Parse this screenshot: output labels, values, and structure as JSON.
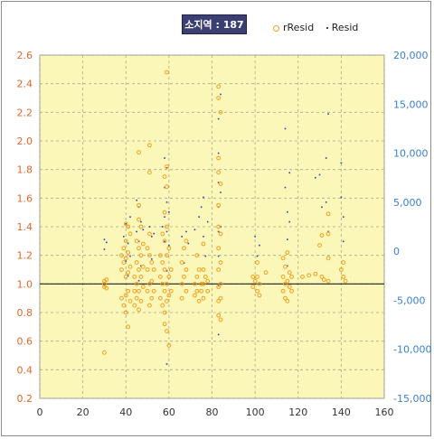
{
  "chart_data": {
    "type": "scatter",
    "title": "소지역 : 187",
    "legend": [
      "rResid",
      "Resid"
    ],
    "legend_position": "top-right",
    "grid": true,
    "xlim": [
      0,
      160
    ],
    "ylim": [
      0.2,
      2.6
    ],
    "y2lim": [
      -15000,
      20000
    ],
    "xticks": [
      "0",
      "20",
      "40",
      "60",
      "80",
      "100",
      "120",
      "140",
      "160"
    ],
    "yticks": [
      "0.2",
      "0.4",
      "0.6",
      "0.8",
      "1.0",
      "1.2",
      "1.4",
      "1.6",
      "1.8",
      "2.0",
      "2.2",
      "2.4",
      "2.6"
    ],
    "y2ticks": [
      "-15,000",
      "-10,000",
      "-5,000",
      "0",
      "5,000",
      "10,000",
      "15,000",
      "20,000"
    ],
    "reference_line": 1.0,
    "colors": {
      "rResid": "#f0a020",
      "Resid": "#2c3db5",
      "plot_bg": "#fbf7b8",
      "left_axis": "#e0682a",
      "right_axis": "#3a7fd0"
    },
    "series": [
      {
        "name": "rResid",
        "axis": "left",
        "points": [
          [
            30,
            1.02
          ],
          [
            30,
            0.98
          ],
          [
            30,
            1.0
          ],
          [
            30,
            0.52
          ],
          [
            31,
            1.03
          ],
          [
            31,
            0.97
          ],
          [
            38,
            1.2
          ],
          [
            38,
            1.1
          ],
          [
            38,
            0.9
          ],
          [
            39,
            1.25
          ],
          [
            39,
            0.85
          ],
          [
            39,
            1.15
          ],
          [
            40,
            1.42
          ],
          [
            40,
            1.3
          ],
          [
            40,
            1.18
          ],
          [
            40,
            1.05
          ],
          [
            40,
            0.92
          ],
          [
            40,
            0.8
          ],
          [
            41,
            1.4
          ],
          [
            41,
            1.22
          ],
          [
            41,
            1.08
          ],
          [
            41,
            0.95
          ],
          [
            41,
            0.7
          ],
          [
            42,
            1.35
          ],
          [
            42,
            1.12
          ],
          [
            42,
            0.88
          ],
          [
            44,
            1.05
          ],
          [
            44,
            0.95
          ],
          [
            44,
            0.85
          ],
          [
            45,
            1.3
          ],
          [
            45,
            1.15
          ],
          [
            45,
            1.0
          ],
          [
            45,
            0.9
          ],
          [
            46,
            1.92
          ],
          [
            46,
            1.55
          ],
          [
            46,
            1.45
          ],
          [
            46,
            1.25
          ],
          [
            46,
            1.1
          ],
          [
            46,
            0.95
          ],
          [
            46,
            0.82
          ],
          [
            47,
            1.4
          ],
          [
            47,
            1.2
          ],
          [
            47,
            1.05
          ],
          [
            47,
            0.88
          ],
          [
            48,
            1.28
          ],
          [
            48,
            1.12
          ],
          [
            48,
            0.98
          ],
          [
            50,
            1.25
          ],
          [
            50,
            1.1
          ],
          [
            50,
            0.95
          ],
          [
            51,
            1.97
          ],
          [
            51,
            1.78
          ],
          [
            51,
            1.35
          ],
          [
            51,
            1.2
          ],
          [
            51,
            1.0
          ],
          [
            51,
            0.85
          ],
          [
            52,
            1.15
          ],
          [
            52,
            1.02
          ],
          [
            52,
            0.9
          ],
          [
            53,
            1.1
          ],
          [
            53,
            0.95
          ],
          [
            56,
            1.2
          ],
          [
            56,
            1.05
          ],
          [
            56,
            0.9
          ],
          [
            57,
            1.35
          ],
          [
            57,
            1.15
          ],
          [
            57,
            1.0
          ],
          [
            57,
            0.85
          ],
          [
            58,
            1.75
          ],
          [
            58,
            1.5
          ],
          [
            58,
            1.3
          ],
          [
            58,
            1.1
          ],
          [
            58,
            0.95
          ],
          [
            58,
            0.8
          ],
          [
            58,
            0.72
          ],
          [
            59,
            2.48
          ],
          [
            59,
            1.82
          ],
          [
            59,
            1.68
          ],
          [
            59,
            1.4
          ],
          [
            59,
            1.2
          ],
          [
            59,
            1.0
          ],
          [
            59,
            0.88
          ],
          [
            59,
            0.67
          ],
          [
            60,
            1.25
          ],
          [
            60,
            1.05
          ],
          [
            60,
            0.92
          ],
          [
            60,
            0.57
          ],
          [
            61,
            1.1
          ],
          [
            61,
            0.95
          ],
          [
            66,
            1.15
          ],
          [
            66,
            1.0
          ],
          [
            66,
            0.9
          ],
          [
            67,
            1.25
          ],
          [
            67,
            1.05
          ],
          [
            68,
            1.3
          ],
          [
            68,
            1.1
          ],
          [
            68,
            0.95
          ],
          [
            72,
            1.0
          ],
          [
            72,
            0.92
          ],
          [
            73,
            1.2
          ],
          [
            73,
            1.05
          ],
          [
            73,
            0.95
          ],
          [
            74,
            1.1
          ],
          [
            74,
            0.88
          ],
          [
            75,
            1.0
          ],
          [
            75,
            0.95
          ],
          [
            76,
            1.28
          ],
          [
            76,
            1.1
          ],
          [
            76,
            1.0
          ],
          [
            76,
            0.9
          ],
          [
            77,
            1.05
          ],
          [
            78,
            1.02
          ],
          [
            78,
            0.95
          ],
          [
            83,
            2.38
          ],
          [
            83,
            2.3
          ],
          [
            83,
            1.88
          ],
          [
            83,
            1.78
          ],
          [
            83,
            1.55
          ],
          [
            83,
            1.4
          ],
          [
            83,
            1.25
          ],
          [
            83,
            1.1
          ],
          [
            83,
            0.98
          ],
          [
            83,
            0.88
          ],
          [
            83,
            0.78
          ],
          [
            84,
            2.2
          ],
          [
            84,
            1.7
          ],
          [
            84,
            1.35
          ],
          [
            84,
            1.15
          ],
          [
            84,
            1.0
          ],
          [
            84,
            0.9
          ],
          [
            84,
            0.75
          ],
          [
            99,
            1.05
          ],
          [
            99,
            0.98
          ],
          [
            100,
            1.02
          ],
          [
            101,
            1.15
          ],
          [
            101,
            1.05
          ],
          [
            101,
            0.95
          ],
          [
            102,
            1.0
          ],
          [
            102,
            0.92
          ],
          [
            105,
            1.08
          ],
          [
            113,
            1.18
          ],
          [
            113,
            1.05
          ],
          [
            113,
            0.95
          ],
          [
            114,
            1.12
          ],
          [
            114,
            1.0
          ],
          [
            114,
            0.9
          ],
          [
            115,
            1.22
          ],
          [
            115,
            1.02
          ],
          [
            115,
            0.88
          ],
          [
            116,
            1.08
          ],
          [
            116,
            0.98
          ],
          [
            117,
            1.05
          ],
          [
            117,
            0.95
          ],
          [
            122,
            1.05
          ],
          [
            125,
            1.06
          ],
          [
            128,
            1.07
          ],
          [
            130,
            1.27
          ],
          [
            131,
            1.34
          ],
          [
            131,
            1.05
          ],
          [
            132,
            1.03
          ],
          [
            134,
            1.49
          ],
          [
            134,
            1.35
          ],
          [
            134,
            1.18
          ],
          [
            134,
            1.02
          ],
          [
            140,
            1.1
          ],
          [
            141,
            1.15
          ],
          [
            141,
            1.05
          ],
          [
            142,
            1.02
          ]
        ]
      },
      {
        "name": "Resid",
        "axis": "right",
        "points": [
          [
            30,
            1200
          ],
          [
            30,
            200
          ],
          [
            30,
            -3500
          ],
          [
            31,
            900
          ],
          [
            39,
            1500
          ],
          [
            40,
            2800
          ],
          [
            40,
            -1000
          ],
          [
            41,
            800
          ],
          [
            41,
            -2500
          ],
          [
            42,
            3500
          ],
          [
            42,
            -500
          ],
          [
            45,
            5200
          ],
          [
            45,
            2000
          ],
          [
            46,
            4500
          ],
          [
            46,
            1000
          ],
          [
            46,
            -3000
          ],
          [
            47,
            3000
          ],
          [
            47,
            -1500
          ],
          [
            48,
            2200
          ],
          [
            51,
            2500
          ],
          [
            52,
            1500
          ],
          [
            52,
            -800
          ],
          [
            53,
            1800
          ],
          [
            57,
            2500
          ],
          [
            58,
            9500
          ],
          [
            58,
            6500
          ],
          [
            58,
            3500
          ],
          [
            58,
            1000
          ],
          [
            59,
            8500
          ],
          [
            59,
            5000
          ],
          [
            59,
            2000
          ],
          [
            59,
            -2000
          ],
          [
            59,
            -11500
          ],
          [
            60,
            4000
          ],
          [
            60,
            600
          ],
          [
            66,
            1500
          ],
          [
            67,
            -1200
          ],
          [
            68,
            2000
          ],
          [
            69,
            800
          ],
          [
            72,
            2200
          ],
          [
            74,
            3500
          ],
          [
            75,
            4500
          ],
          [
            76,
            5500
          ],
          [
            76,
            1500
          ],
          [
            77,
            -500
          ],
          [
            78,
            3000
          ],
          [
            83,
            13500
          ],
          [
            83,
            10000
          ],
          [
            83,
            7000
          ],
          [
            83,
            4500
          ],
          [
            83,
            2000
          ],
          [
            83,
            -500
          ],
          [
            83,
            -3500
          ],
          [
            83,
            -8500
          ],
          [
            84,
            16000
          ],
          [
            84,
            6000
          ],
          [
            84,
            2500
          ],
          [
            100,
            1500
          ],
          [
            101,
            -500
          ],
          [
            102,
            600
          ],
          [
            114,
            12500
          ],
          [
            114,
            6500
          ],
          [
            115,
            4000
          ],
          [
            115,
            1200
          ],
          [
            115,
            -1500
          ],
          [
            116,
            8000
          ],
          [
            116,
            3000
          ],
          [
            128,
            7500
          ],
          [
            130,
            7800
          ],
          [
            131,
            4500
          ],
          [
            133,
            9500
          ],
          [
            133,
            5000
          ],
          [
            134,
            14000
          ],
          [
            134,
            2000
          ],
          [
            140,
            9000
          ],
          [
            140,
            5500
          ],
          [
            141,
            3500
          ],
          [
            141,
            1000
          ]
        ]
      }
    ]
  }
}
